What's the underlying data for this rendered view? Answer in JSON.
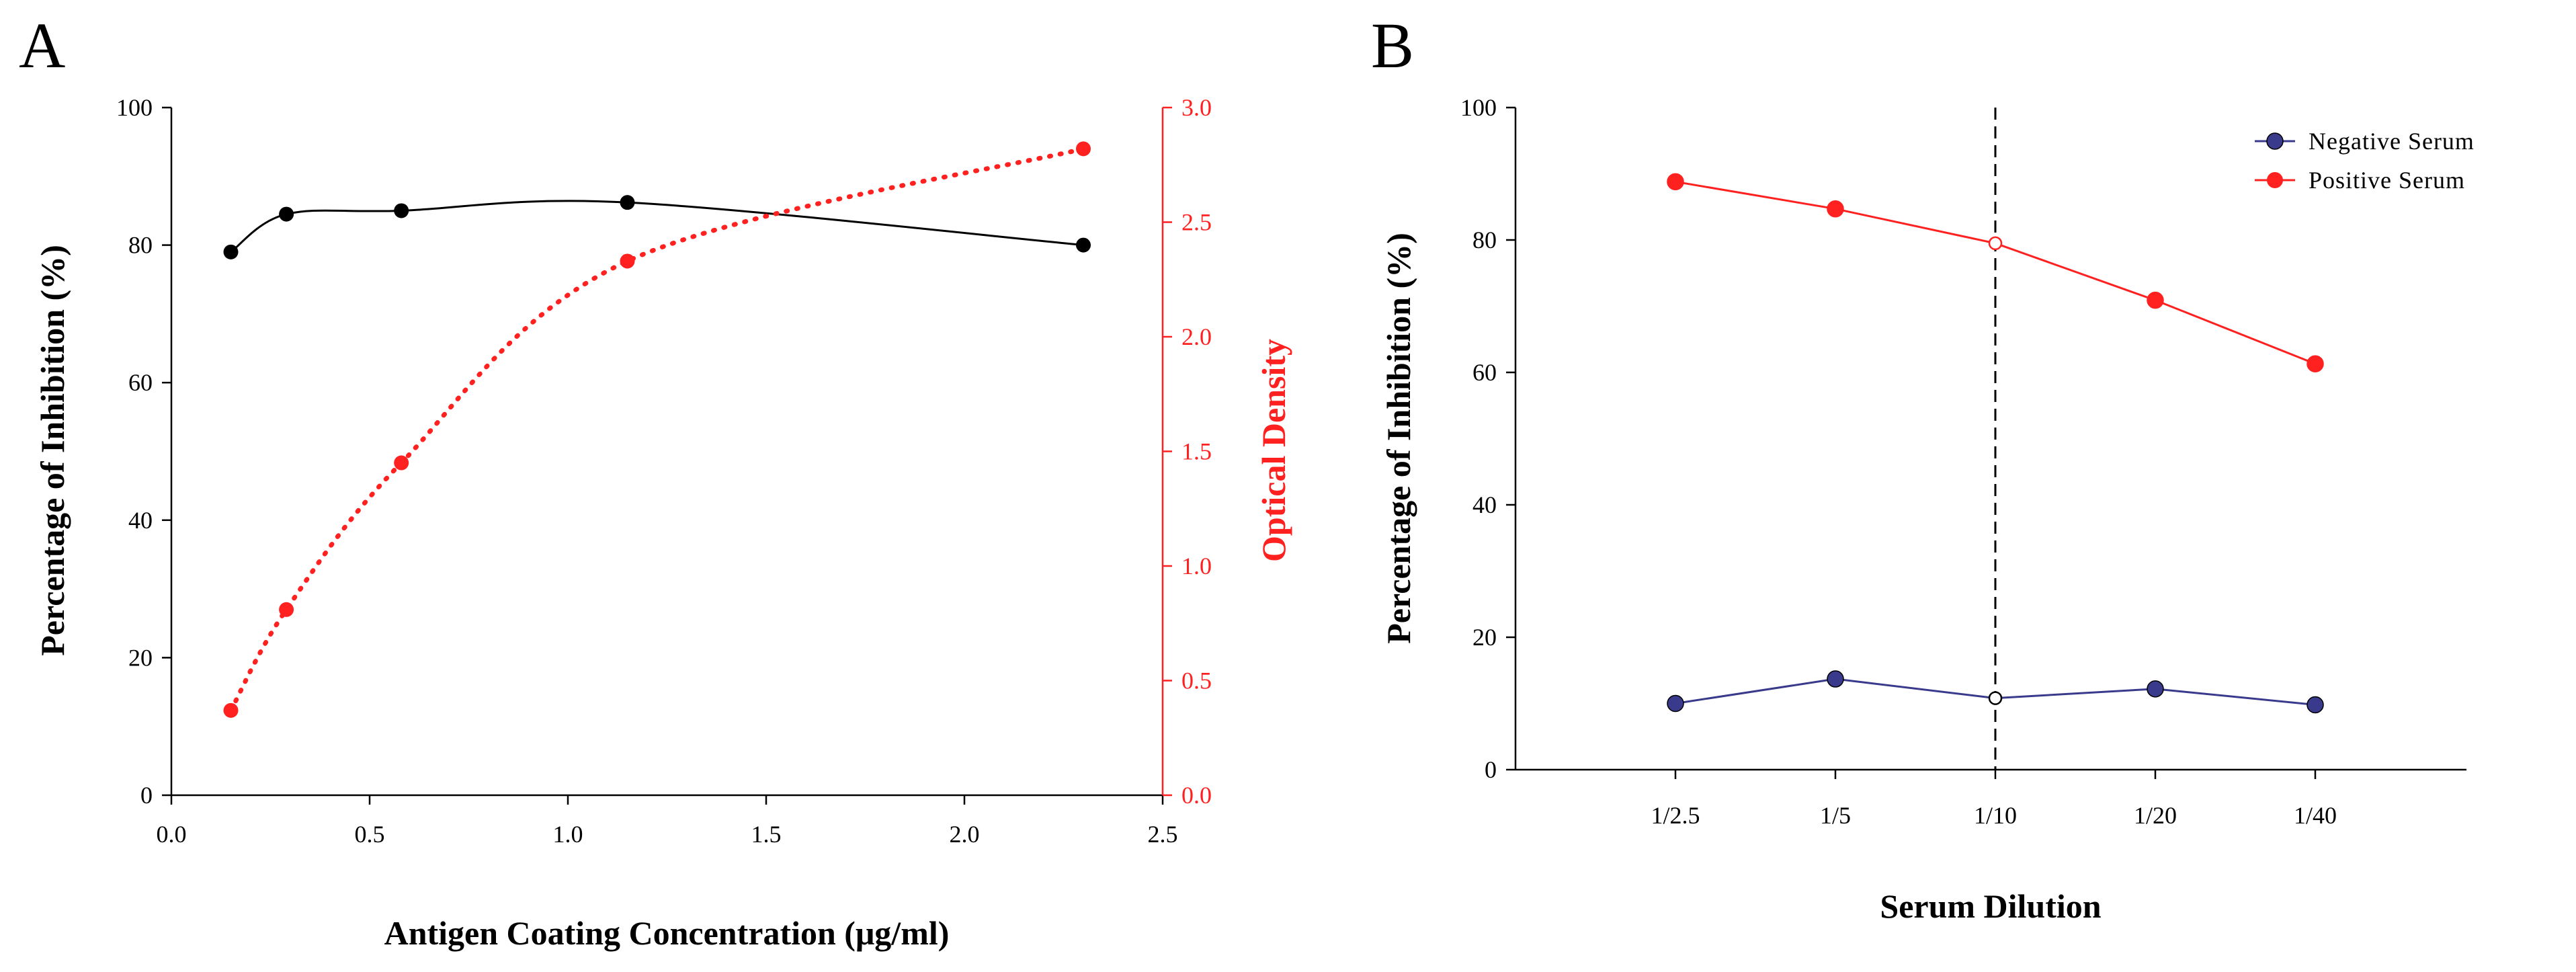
{
  "chart_data": [
    {
      "panel": "A",
      "type": "line",
      "xlabel": "Antigen Coating Concentration (μg/ml)",
      "ylabel_left": "Percentage of Inhibition (%)",
      "ylabel_right": "Optical Density",
      "xlim": [
        0.0,
        2.5
      ],
      "ylim_left": [
        0,
        100
      ],
      "ylim_right": [
        0.0,
        3.0
      ],
      "x_ticks": [
        "0.0",
        "0.5",
        "1.0",
        "1.5",
        "2.0",
        "2.5"
      ],
      "y_ticks_left": [
        "0",
        "20",
        "40",
        "60",
        "80",
        "100"
      ],
      "y_ticks_right": [
        "0.0",
        "0.5",
        "1.0",
        "1.5",
        "2.0",
        "2.5",
        "3.0"
      ],
      "series": [
        {
          "name": "Percentage of Inhibition",
          "axis": "left",
          "color": "#000000",
          "style": "solid",
          "x": [
            0.15,
            0.29,
            0.58,
            1.15,
            2.3
          ],
          "y": [
            79,
            84.5,
            85,
            86.2,
            80
          ]
        },
        {
          "name": "Optical Density",
          "axis": "right",
          "color": "#ff2020",
          "style": "dotted",
          "x": [
            0.15,
            0.29,
            0.58,
            1.15,
            2.3
          ],
          "y": [
            0.37,
            0.81,
            1.45,
            2.33,
            2.82
          ]
        }
      ]
    },
    {
      "panel": "B",
      "type": "line",
      "xlabel": "Serum Dilution",
      "ylabel": "Percentage of Inhibition (%)",
      "categories": [
        "1/2.5",
        "1/5",
        "1/10",
        "1/20",
        "1/40"
      ],
      "ylim": [
        0,
        100
      ],
      "y_ticks": [
        "0",
        "20",
        "40",
        "60",
        "80",
        "100"
      ],
      "reference_line_category": "1/10",
      "legend_position": "top-right",
      "series": [
        {
          "name": "Negative Serum",
          "color": "#3a3a8c",
          "values": [
            10,
            13.7,
            10.8,
            12.2,
            9.8
          ]
        },
        {
          "name": "Positive Serum",
          "color": "#ff2020",
          "values": [
            88.8,
            84.7,
            79.5,
            70.9,
            61.3
          ]
        }
      ]
    }
  ]
}
